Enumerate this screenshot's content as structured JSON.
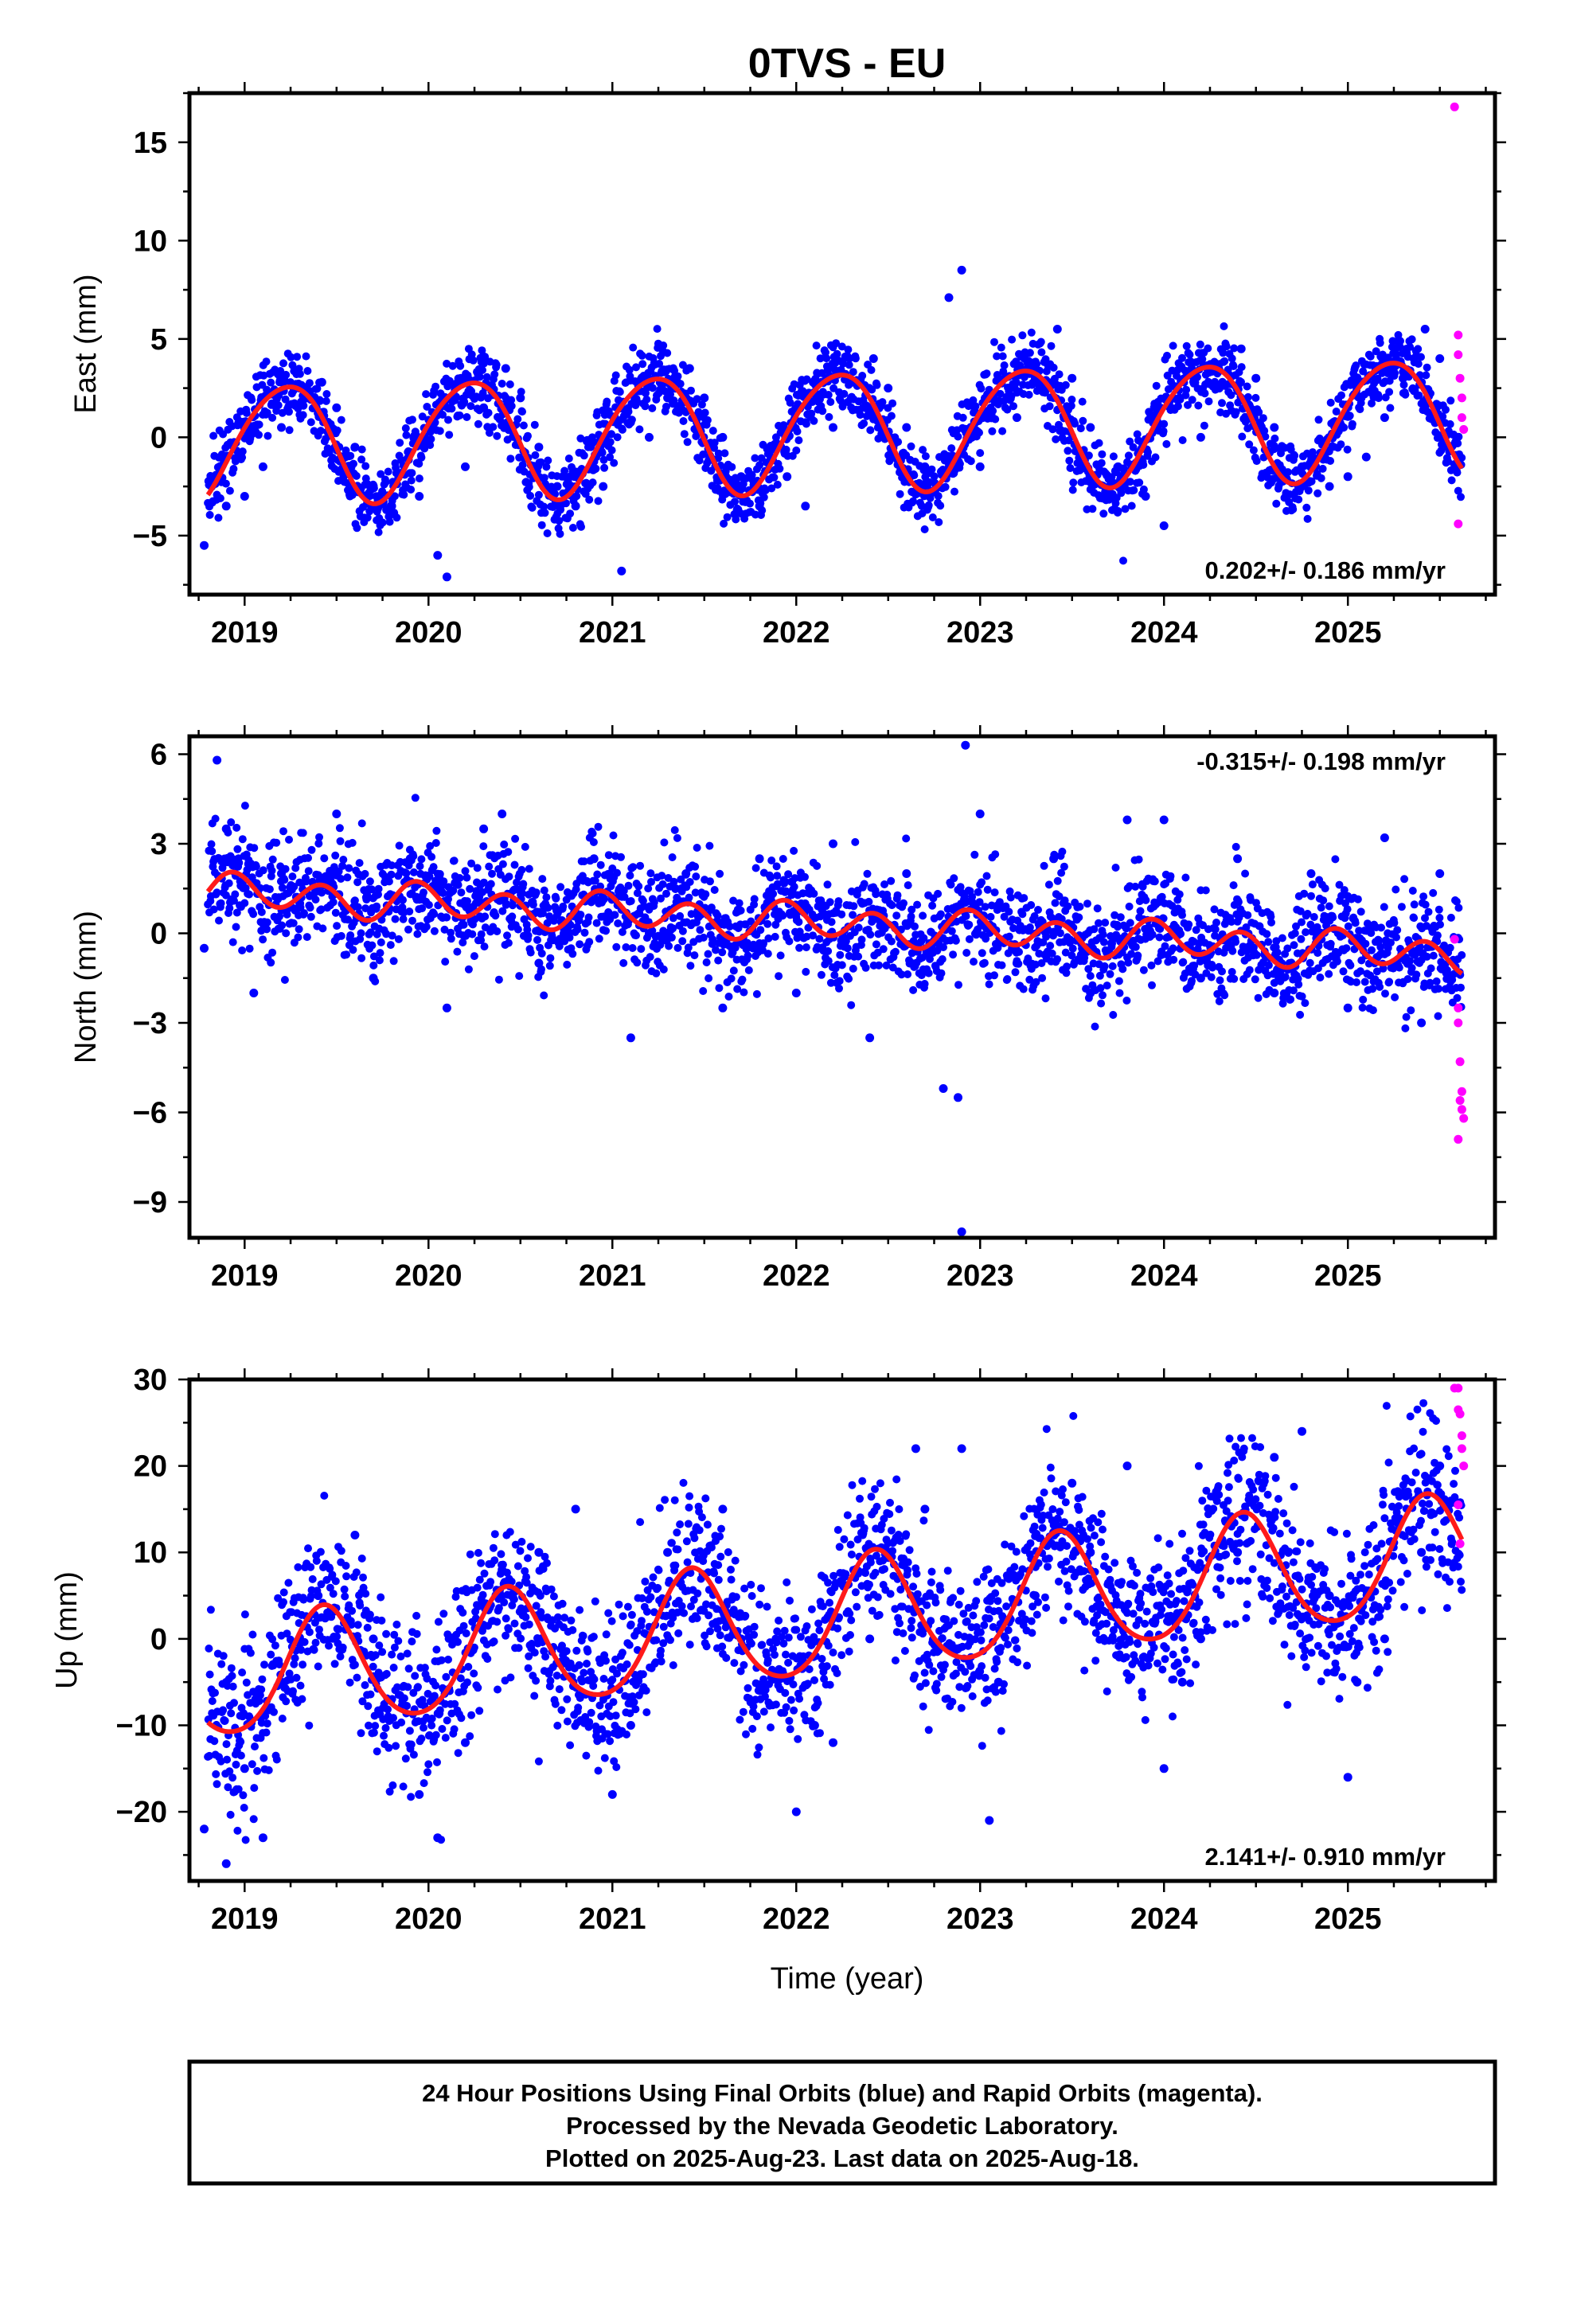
{
  "colors": {
    "final_orbits": "#0000ff",
    "rapid_orbits": "#ff00ff",
    "model_fit": "#ff1a1a",
    "frame": "#000000"
  },
  "chart_data": [
    {
      "type": "scatter",
      "title": "0TVS - EU",
      "xlabel": "",
      "ylabel": "East (mm)",
      "xlim": [
        2018.7,
        2025.8
      ],
      "ylim": [
        -8,
        17.5
      ],
      "yticks": [
        -5,
        0,
        5,
        10,
        15
      ],
      "xticks": [
        2019,
        2020,
        2021,
        2022,
        2023,
        2024,
        2025
      ],
      "rate_label": "0.202+/- 0.186 mm/yr",
      "rate_position": "bottom-right",
      "model": {
        "start": 2018.8,
        "end": 2025.62,
        "offset": -0.3,
        "trend_mm_per_yr": 0.202,
        "annual_amp": 3.0,
        "annual_phase_yr": 0.17,
        "semiannual_amp": 0.3
      },
      "series": [
        {
          "name": "Final Orbits",
          "color": "blue",
          "scatter_sd": 0.9,
          "x": [
            2018.78,
            2018.82,
            2018.9,
            2019.0,
            2019.1,
            2019.2,
            2019.3,
            2019.42,
            2019.5,
            2019.6,
            2019.7,
            2019.8,
            2019.95,
            2020.05,
            2020.1,
            2020.2,
            2020.3,
            2020.42,
            2020.5,
            2020.6,
            2020.7,
            2020.8,
            2020.95,
            2021.05,
            2021.2,
            2021.3,
            2021.42,
            2021.5,
            2021.6,
            2021.7,
            2021.8,
            2021.95,
            2022.05,
            2022.2,
            2022.3,
            2022.42,
            2022.5,
            2022.6,
            2022.7,
            2022.83,
            2022.9,
            2023.0,
            2023.2,
            2023.3,
            2023.42,
            2023.5,
            2023.6,
            2023.75,
            2023.9,
            2024.0,
            2024.2,
            2024.3,
            2024.42,
            2024.5,
            2024.6,
            2024.75,
            2024.9,
            2025.0,
            2025.1,
            2025.2,
            2025.3,
            2025.42,
            2025.5
          ],
          "y": [
            -5.5,
            -2.5,
            -3.5,
            -3.0,
            -1.5,
            0.5,
            2.5,
            2.8,
            1.5,
            -0.5,
            -2.5,
            -3.5,
            -3.0,
            -6.0,
            -7.1,
            -1.5,
            1.5,
            3.5,
            2.0,
            -0.5,
            -2.5,
            -3.5,
            -2.5,
            -6.8,
            0.0,
            2.0,
            3.5,
            2.0,
            0.0,
            -2.0,
            -3.5,
            -2.0,
            -3.5,
            0.5,
            2.0,
            4.0,
            2.5,
            0.5,
            -1.5,
            7.1,
            8.5,
            -1.5,
            1.0,
            3.0,
            5.5,
            3.0,
            0.5,
            -1.5,
            -3.0,
            -4.5,
            0.0,
            2.5,
            4.5,
            3.0,
            0.5,
            -1.5,
            -2.5,
            -2.0,
            -1.0,
            1.0,
            3.0,
            5.5,
            4.0
          ]
        },
        {
          "name": "Rapid Orbits",
          "color": "magenta",
          "x": [
            2025.58,
            2025.6,
            2025.6,
            2025.61,
            2025.62,
            2025.62,
            2025.63,
            2025.6
          ],
          "y": [
            16.8,
            5.2,
            4.2,
            3.0,
            2.0,
            1.0,
            0.4,
            -4.4
          ]
        }
      ]
    },
    {
      "type": "scatter",
      "title": "",
      "xlabel": "",
      "ylabel": "North (mm)",
      "xlim": [
        2018.7,
        2025.8
      ],
      "ylim": [
        -10.2,
        6.6
      ],
      "yticks": [
        -9,
        -6,
        -3,
        0,
        3,
        6
      ],
      "xticks": [
        2019,
        2020,
        2021,
        2022,
        2023,
        2024,
        2025
      ],
      "rate_label": "-0.315+/- 0.198 mm/yr",
      "rate_position": "top-right",
      "model": {
        "start": 2018.8,
        "end": 2025.62,
        "offset": 1.4,
        "trend_mm_per_yr": -0.315,
        "annual_amp": 0.2,
        "annual_phase_yr": 0.0,
        "semiannual_amp": 0.55
      },
      "series": [
        {
          "name": "Final Orbits",
          "color": "blue",
          "scatter_sd": 0.9,
          "x": [
            2018.78,
            2018.85,
            2018.9,
            2019.05,
            2019.2,
            2019.3,
            2019.5,
            2019.7,
            2019.9,
            2020.1,
            2020.3,
            2020.4,
            2020.6,
            2020.9,
            2021.1,
            2021.2,
            2021.4,
            2021.6,
            2021.8,
            2022.0,
            2022.2,
            2022.4,
            2022.6,
            2022.8,
            2022.88,
            2022.9,
            2022.92,
            2023.0,
            2023.2,
            2023.4,
            2023.6,
            2023.8,
            2024.0,
            2024.2,
            2024.4,
            2024.6,
            2024.8,
            2025.0,
            2025.2,
            2025.4,
            2025.5
          ],
          "y": [
            -0.5,
            5.8,
            3.5,
            -2.0,
            2.0,
            1.0,
            4.0,
            -1.5,
            2.5,
            -2.5,
            3.5,
            4.0,
            -1.0,
            2.5,
            -3.5,
            0.0,
            2.0,
            -2.5,
            2.5,
            -2.0,
            3.0,
            -3.5,
            2.0,
            -5.2,
            -5.5,
            -10.0,
            6.3,
            4.0,
            -1.0,
            2.5,
            -2.0,
            3.8,
            3.8,
            -1.5,
            2.5,
            -2.0,
            2.0,
            -2.5,
            3.2,
            -3.0,
            2.0
          ]
        },
        {
          "name": "Rapid Orbits",
          "color": "magenta",
          "x": [
            2025.58,
            2025.6,
            2025.6,
            2025.61,
            2025.62,
            2025.62,
            2025.63,
            2025.6,
            2025.61
          ],
          "y": [
            -0.2,
            -2.5,
            -3.0,
            -4.3,
            -5.3,
            -5.9,
            -6.2,
            -6.9,
            -5.6
          ]
        }
      ]
    },
    {
      "type": "scatter",
      "title": "",
      "xlabel": "Time (year)",
      "ylabel": "Up (mm)",
      "xlim": [
        2018.7,
        2025.8
      ],
      "ylim": [
        -28,
        30
      ],
      "yticks": [
        -20,
        -10,
        0,
        10,
        20,
        30
      ],
      "xticks": [
        2019,
        2020,
        2021,
        2022,
        2023,
        2024,
        2025
      ],
      "rate_label": "2.141+/- 0.910 mm/yr",
      "rate_position": "bottom-right",
      "model": {
        "start": 2018.8,
        "end": 2025.62,
        "offset": -5.0,
        "trend_mm_per_yr": 2.141,
        "annual_amp": 6.8,
        "annual_phase_yr": 0.38,
        "semiannual_amp": 0.8
      },
      "series": [
        {
          "name": "Final Orbits",
          "color": "blue",
          "scatter_sd": 4.5,
          "x": [
            2018.78,
            2018.9,
            2019.0,
            2019.1,
            2019.2,
            2019.4,
            2019.6,
            2019.7,
            2019.95,
            2020.05,
            2020.2,
            2020.4,
            2020.6,
            2020.8,
            2021.0,
            2021.1,
            2021.3,
            2021.6,
            2021.7,
            2022.0,
            2022.1,
            2022.2,
            2022.4,
            2022.65,
            2022.7,
            2022.9,
            2023.05,
            2023.1,
            2023.3,
            2023.5,
            2023.6,
            2023.8,
            2024.0,
            2024.1,
            2024.2,
            2024.4,
            2024.6,
            2024.75,
            2024.9,
            2025.0,
            2025.05,
            2025.2,
            2025.4,
            2025.5
          ],
          "y": [
            -22.0,
            -26.0,
            -15.0,
            -23.0,
            -5.0,
            5.0,
            12.0,
            0.0,
            -18.0,
            -23.0,
            -12.0,
            8.0,
            10.0,
            15.0,
            -18.0,
            -10.0,
            10.0,
            15.0,
            0.0,
            -20.0,
            -10.0,
            -12.0,
            0.0,
            22.0,
            15.0,
            22.0,
            -21.0,
            -5.0,
            5.0,
            18.0,
            10.0,
            20.0,
            -15.0,
            -5.0,
            0.0,
            10.0,
            21.0,
            24.0,
            5.0,
            -16.0,
            -5.0,
            0.0,
            10.0,
            20.0
          ]
        },
        {
          "name": "Rapid Orbits",
          "color": "magenta",
          "x": [
            2025.58,
            2025.6,
            2025.6,
            2025.61,
            2025.62,
            2025.62,
            2025.63,
            2025.6,
            2025.61
          ],
          "y": [
            29.0,
            29.0,
            26.5,
            26.0,
            23.5,
            22.0,
            20.0,
            15.5,
            11.0
          ]
        }
      ]
    }
  ],
  "footer": {
    "line1": "24 Hour Positions Using Final Orbits (blue) and Rapid Orbits (magenta).",
    "line2": "Processed by the Nevada Geodetic Laboratory.",
    "line3": "Plotted on 2025-Aug-23. Last data on 2025-Aug-18."
  }
}
